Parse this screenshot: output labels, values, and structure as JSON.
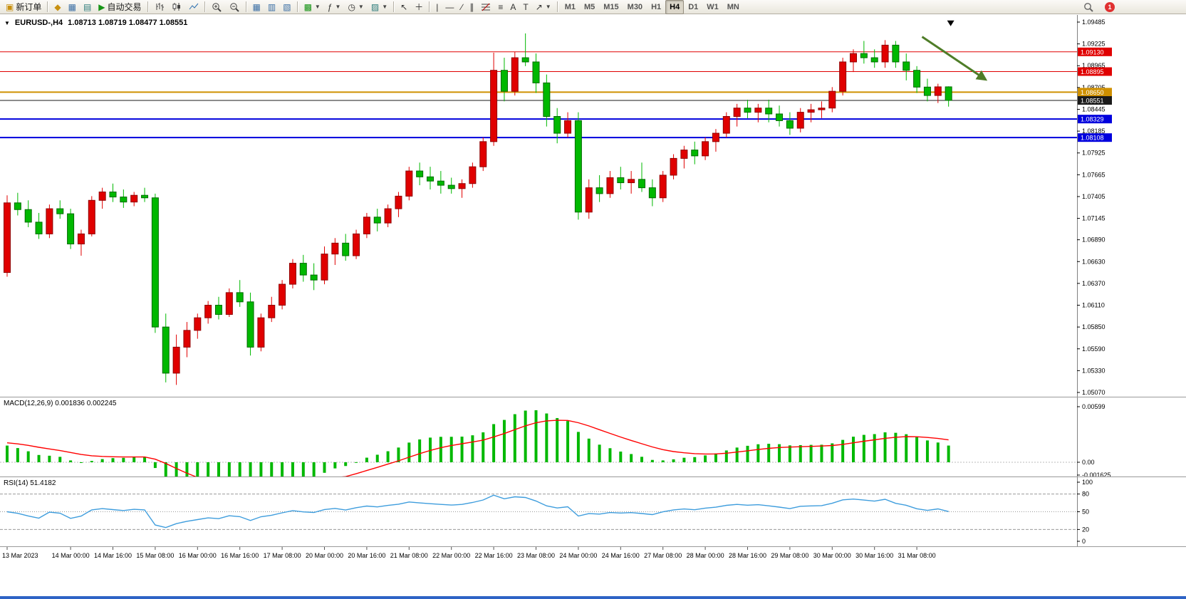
{
  "toolbar": {
    "new_order_label": "新订单",
    "autotrading_label": "自动交易",
    "timeframes": [
      "M1",
      "M5",
      "M15",
      "M30",
      "H1",
      "H4",
      "D1",
      "W1",
      "MN"
    ],
    "active_timeframe": "H4",
    "notification_count": "1"
  },
  "main_chart": {
    "title_symbol": "EURUSD-,H4",
    "title_ohlc": "1.08713 1.08719 1.08477 1.08551"
  },
  "macd": {
    "title_text": "MACD(12,26,9) 0.001836 0.002245",
    "axis": [
      "0.00599",
      "0.00",
      "-0.001625"
    ]
  },
  "rsi": {
    "title_text": "RSI(14) 51.4182",
    "axis": [
      "100",
      "80",
      "50",
      "20",
      "0"
    ]
  },
  "chart_data": [
    {
      "type": "candlestick",
      "symbol": "EURUSD-",
      "timeframe": "H4",
      "last_ohlc": {
        "open": 1.08713,
        "high": 1.08719,
        "low": 1.08477,
        "close": 1.08551
      },
      "ylim": [
        1.0507,
        1.09485
      ],
      "bull_color": "#e00000",
      "bear_color": "#00b800",
      "y_axis_labels": [
        "1.09485",
        "1.09225",
        "1.08965",
        "1.08705",
        "1.08445",
        "1.08185",
        "1.07925",
        "1.07665",
        "1.07405",
        "1.07145",
        "1.06890",
        "1.06630",
        "1.06370",
        "1.06110",
        "1.05850",
        "1.05590",
        "1.05330",
        "1.05070"
      ],
      "x_tick_labels": [
        "13 Mar 2023",
        "14 Mar 00:00",
        "14 Mar 16:00",
        "15 Mar 08:00",
        "16 Mar 00:00",
        "16 Mar 16:00",
        "17 Mar 08:00",
        "20 Mar 00:00",
        "20 Mar 16:00",
        "21 Mar 08:00",
        "22 Mar 00:00",
        "22 Mar 16:00",
        "23 Mar 08:00",
        "24 Mar 00:00",
        "24 Mar 16:00",
        "27 Mar 08:00",
        "28 Mar 00:00",
        "28 Mar 16:00",
        "29 Mar 08:00",
        "30 Mar 00:00",
        "30 Mar 16:00",
        "31 Mar 08:00"
      ],
      "x_tick_candle_index": [
        0,
        6,
        10,
        14,
        18,
        22,
        26,
        30,
        34,
        38,
        42,
        46,
        50,
        54,
        58,
        62,
        66,
        70,
        74,
        78,
        82,
        86
      ],
      "levels": [
        {
          "price": 1.0913,
          "label": "1.09130",
          "color": "#e00000",
          "line_width": 1,
          "style": "solid"
        },
        {
          "price": 1.08895,
          "label": "1.08895",
          "color": "#e00000",
          "line_width": 1,
          "style": "solid"
        },
        {
          "price": 1.0865,
          "label": "1.08650",
          "color": "#cf9000",
          "line_width": 2,
          "style": "solid"
        },
        {
          "price": 1.08551,
          "label": "1.08551",
          "color": "#1a1a1a",
          "line_width": 1,
          "style": "solid",
          "role": "current-price"
        },
        {
          "price": 1.08329,
          "label": "1.08329",
          "color": "#0000dd",
          "line_width": 2,
          "style": "solid"
        },
        {
          "price": 1.08108,
          "label": "1.08108",
          "color": "#0000dd",
          "line_width": 2,
          "style": "solid"
        }
      ],
      "annotations": [
        {
          "type": "arrow",
          "from_index": 86.5,
          "from_price": 1.0931,
          "to_index": 92.5,
          "to_price": 1.088,
          "color": "#4f7d28",
          "width": 3
        },
        {
          "type": "down-triangle",
          "index": 89.2,
          "price": 1.0947,
          "color": "#000000"
        }
      ],
      "candles": [
        [
          1.065,
          1.0742,
          1.0645,
          1.0733
        ],
        [
          1.0733,
          1.0745,
          1.0718,
          1.0725
        ],
        [
          1.0725,
          1.0736,
          1.0704,
          1.071
        ],
        [
          1.071,
          1.0721,
          1.069,
          1.0696
        ],
        [
          1.0696,
          1.0731,
          1.0691,
          1.0726
        ],
        [
          1.0726,
          1.0736,
          1.0714,
          1.072
        ],
        [
          1.072,
          1.0726,
          1.0678,
          1.0684
        ],
        [
          1.0684,
          1.0701,
          1.067,
          1.0696
        ],
        [
          1.0696,
          1.0741,
          1.0693,
          1.0736
        ],
        [
          1.0736,
          1.0751,
          1.0726,
          1.0746
        ],
        [
          1.0746,
          1.0756,
          1.0734,
          1.074
        ],
        [
          1.074,
          1.0749,
          1.0727,
          1.0734
        ],
        [
          1.0734,
          1.0746,
          1.0729,
          1.0742
        ],
        [
          1.0742,
          1.0751,
          1.0734,
          1.0739
        ],
        [
          1.0739,
          1.0744,
          1.0578,
          1.0585
        ],
        [
          1.0585,
          1.0601,
          1.0519,
          1.053
        ],
        [
          1.053,
          1.0576,
          1.0516,
          1.0561
        ],
        [
          1.0561,
          1.0591,
          1.0549,
          1.0581
        ],
        [
          1.0581,
          1.0601,
          1.0571,
          1.0596
        ],
        [
          1.0596,
          1.0616,
          1.0589,
          1.0611
        ],
        [
          1.0611,
          1.0621,
          1.0594,
          1.06
        ],
        [
          1.06,
          1.0631,
          1.0597,
          1.0626
        ],
        [
          1.0626,
          1.0641,
          1.0609,
          1.0615
        ],
        [
          1.0615,
          1.0626,
          1.0551,
          1.0561
        ],
        [
          1.0561,
          1.0601,
          1.0556,
          1.0596
        ],
        [
          1.0596,
          1.0621,
          1.0591,
          1.0611
        ],
        [
          1.0611,
          1.0641,
          1.0606,
          1.0636
        ],
        [
          1.0636,
          1.0666,
          1.0631,
          1.0661
        ],
        [
          1.0661,
          1.0671,
          1.0639,
          1.0647
        ],
        [
          1.0647,
          1.0661,
          1.0629,
          1.0641
        ],
        [
          1.0641,
          1.0681,
          1.0636,
          1.0672
        ],
        [
          1.0672,
          1.0691,
          1.0659,
          1.0685
        ],
        [
          1.0685,
          1.0696,
          1.0664,
          1.067
        ],
        [
          1.067,
          1.0701,
          1.0666,
          1.0696
        ],
        [
          1.0696,
          1.0721,
          1.0691,
          1.0716
        ],
        [
          1.0716,
          1.0726,
          1.0699,
          1.0709
        ],
        [
          1.0709,
          1.0731,
          1.0704,
          1.0726
        ],
        [
          1.0726,
          1.0746,
          1.0716,
          1.0741
        ],
        [
          1.0741,
          1.0776,
          1.0736,
          1.0771
        ],
        [
          1.0771,
          1.0781,
          1.0754,
          1.0764
        ],
        [
          1.0764,
          1.0776,
          1.0749,
          1.0759
        ],
        [
          1.0759,
          1.0771,
          1.0744,
          1.0754
        ],
        [
          1.0754,
          1.0763,
          1.0744,
          1.075
        ],
        [
          1.075,
          1.0761,
          1.0739,
          1.0756
        ],
        [
          1.0756,
          1.0781,
          1.0751,
          1.0776
        ],
        [
          1.0776,
          1.0811,
          1.0771,
          1.0806
        ],
        [
          1.0806,
          1.0912,
          1.0801,
          1.0891
        ],
        [
          1.0891,
          1.0906,
          1.0854,
          1.0866
        ],
        [
          1.0866,
          1.0913,
          1.0861,
          1.0906
        ],
        [
          1.0906,
          1.0935,
          1.0896,
          1.0901
        ],
        [
          1.0901,
          1.0911,
          1.0864,
          1.0876
        ],
        [
          1.0876,
          1.0886,
          1.0824,
          1.0836
        ],
        [
          1.0836,
          1.0846,
          1.0804,
          1.0816
        ],
        [
          1.0816,
          1.0841,
          1.0811,
          1.0831
        ],
        [
          1.0831,
          1.0841,
          1.0713,
          1.0722
        ],
        [
          1.0722,
          1.0761,
          1.0714,
          1.0751
        ],
        [
          1.0751,
          1.0766,
          1.0734,
          1.0744
        ],
        [
          1.0744,
          1.0771,
          1.0739,
          1.0763
        ],
        [
          1.0763,
          1.0776,
          1.0749,
          1.0757
        ],
        [
          1.0757,
          1.0771,
          1.0744,
          1.0761
        ],
        [
          1.0761,
          1.0781,
          1.0746,
          1.0751
        ],
        [
          1.0751,
          1.0761,
          1.0729,
          1.0739
        ],
        [
          1.0739,
          1.0771,
          1.0734,
          1.0766
        ],
        [
          1.0766,
          1.0791,
          1.0761,
          1.0786
        ],
        [
          1.0786,
          1.0801,
          1.0774,
          1.0796
        ],
        [
          1.0796,
          1.0806,
          1.0779,
          1.0789
        ],
        [
          1.0789,
          1.0811,
          1.0784,
          1.0806
        ],
        [
          1.0806,
          1.0821,
          1.0794,
          1.0816
        ],
        [
          1.0816,
          1.0841,
          1.0811,
          1.0836
        ],
        [
          1.0836,
          1.0851,
          1.0824,
          1.0846
        ],
        [
          1.0846,
          1.0856,
          1.0834,
          1.0841
        ],
        [
          1.0841,
          1.0851,
          1.0829,
          1.0846
        ],
        [
          1.0846,
          1.0856,
          1.0829,
          1.0839
        ],
        [
          1.0839,
          1.0849,
          1.0824,
          1.0831
        ],
        [
          1.0831,
          1.0841,
          1.0814,
          1.0822
        ],
        [
          1.0822,
          1.0846,
          1.0817,
          1.0841
        ],
        [
          1.0841,
          1.0851,
          1.0829,
          1.0844
        ],
        [
          1.0844,
          1.0854,
          1.0834,
          1.0846
        ],
        [
          1.0846,
          1.0871,
          1.0841,
          1.0866
        ],
        [
          1.0866,
          1.0906,
          1.0861,
          1.0901
        ],
        [
          1.0901,
          1.0916,
          1.0889,
          1.0911
        ],
        [
          1.0911,
          1.0926,
          1.0899,
          1.0906
        ],
        [
          1.0906,
          1.0916,
          1.0894,
          1.0901
        ],
        [
          1.0901,
          1.0927,
          1.0894,
          1.0921
        ],
        [
          1.0921,
          1.0926,
          1.0894,
          1.0901
        ],
        [
          1.0901,
          1.0911,
          1.0879,
          1.0891
        ],
        [
          1.0891,
          1.0896,
          1.0864,
          1.0871
        ],
        [
          1.0871,
          1.0881,
          1.0854,
          1.0861
        ],
        [
          1.0861,
          1.0875,
          1.0852,
          1.08713
        ],
        [
          1.08713,
          1.08719,
          1.08477,
          1.08551
        ]
      ]
    },
    {
      "type": "bar",
      "name": "MACD",
      "params": [
        12,
        26,
        9
      ],
      "last_values": [
        0.001836,
        0.002245
      ],
      "ylim": [
        -0.001625,
        0.00599
      ],
      "hist_color": "#00b800",
      "signal_color": "#ff0000",
      "derived_from": "candles",
      "note": "histogram = EMA12-EMA26 of closes; red signal = EMA9 of histogram"
    },
    {
      "type": "line",
      "name": "RSI",
      "params": [
        14
      ],
      "last_value": 51.4182,
      "ylim": [
        0,
        100
      ],
      "levels": [
        80,
        50,
        20
      ],
      "line_color": "#3e9ddd",
      "derived_from": "candles"
    }
  ]
}
